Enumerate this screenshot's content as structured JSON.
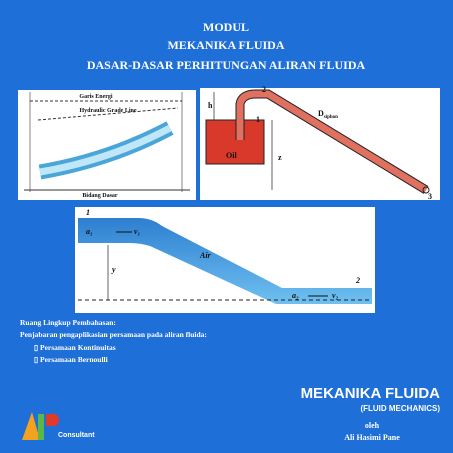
{
  "header": {
    "lines": [
      "MODUL",
      "MEKANIKA FLUIDA",
      "DASAR-DASAR PERHITUNGAN ALIRAN FLUIDA"
    ]
  },
  "figure1": {
    "labels": [
      "Garis Energi",
      "Hydraulic Grade Line",
      "Bidang Dasar"
    ]
  },
  "figure2": {
    "labels": [
      "h",
      "1",
      "2",
      "D",
      "siphon",
      "Oil",
      "z",
      "3"
    ]
  },
  "figure3": {
    "labels": [
      "1",
      "a₁",
      "v₁",
      "Air",
      "y",
      "2",
      "a₂",
      "v₂"
    ]
  },
  "scope": {
    "title": "Ruang Lingkup Pembahasan:",
    "intro": "Penjabaran pengaplikasian persamaan pada aliran fluida:",
    "items": [
      "Persamaan Kontinuitas",
      "Persamaan Bernoulli"
    ]
  },
  "book": {
    "title": "MEKANIKA FLUIDA",
    "subtitle": "(FLUID MECHANICS)",
    "by": "oleh",
    "author": "Ali Hasimi Pane"
  },
  "logo": {
    "text": "Consultant"
  }
}
